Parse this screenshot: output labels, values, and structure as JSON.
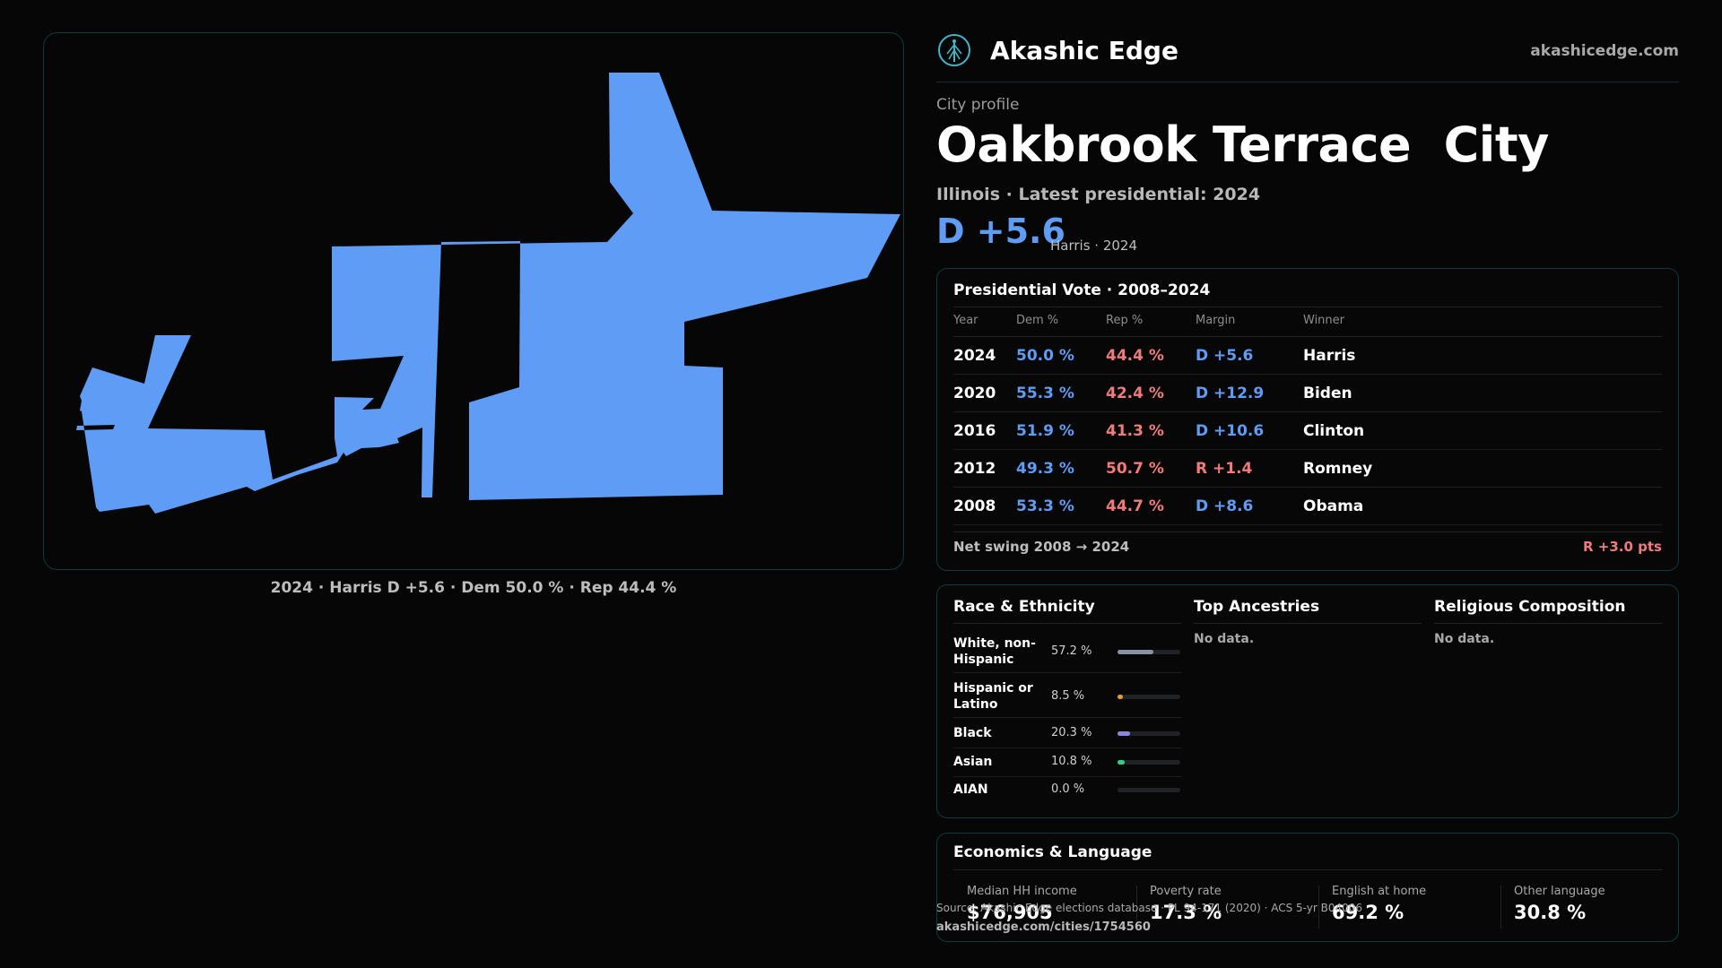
{
  "brand": {
    "name": "Akashic Edge",
    "site": "akashicedge.com",
    "logo_icon": "akashic-tree-icon"
  },
  "map": {
    "caption": "2024 · Harris D +5.6 · Dem 50.0 % · Rep 44.4 %",
    "fill_color": "#5f9cf5"
  },
  "profile": {
    "eyebrow": "City profile",
    "title": "Oakbrook Terrace  City",
    "subtitle": "Illinois · Latest presidential: 2024",
    "margin": "D +5.6",
    "margin_note": "Harris · 2024"
  },
  "vote": {
    "title": "Presidential Vote · 2008–2024",
    "headers": {
      "year": "Year",
      "dem": "Dem %",
      "rep": "Rep %",
      "margin": "Margin",
      "winner": "Winner"
    },
    "rows": [
      {
        "year": "2024",
        "dem": "50.0 %",
        "rep": "44.4 %",
        "margin": "D +5.6",
        "party": "D",
        "winner": "Harris"
      },
      {
        "year": "2020",
        "dem": "55.3 %",
        "rep": "42.4 %",
        "margin": "D +12.9",
        "party": "D",
        "winner": "Biden"
      },
      {
        "year": "2016",
        "dem": "51.9 %",
        "rep": "41.3 %",
        "margin": "D +10.6",
        "party": "D",
        "winner": "Clinton"
      },
      {
        "year": "2012",
        "dem": "49.3 %",
        "rep": "50.7 %",
        "margin": "R +1.4",
        "party": "R",
        "winner": "Romney"
      },
      {
        "year": "2008",
        "dem": "53.3 %",
        "rep": "44.7 %",
        "margin": "D +8.6",
        "party": "D",
        "winner": "Obama"
      }
    ],
    "swing_label": "Net swing 2008 → 2024",
    "swing_value": "R +3.0 pts"
  },
  "demographics": {
    "race_title": "Race & Ethnicity",
    "race": [
      {
        "label": "White, non-Hispanic",
        "pct": "57.2 %",
        "value": 57.2,
        "color": "#8a93a6"
      },
      {
        "label": "Hispanic or Latino",
        "pct": "8.5 %",
        "value": 8.5,
        "color": "#e0a030"
      },
      {
        "label": "Black",
        "pct": "20.3 %",
        "value": 20.3,
        "color": "#8c86e0"
      },
      {
        "label": "Asian",
        "pct": "10.8 %",
        "value": 10.8,
        "color": "#2fcf8a"
      },
      {
        "label": "AIAN",
        "pct": "0.0 %",
        "value": 0.0,
        "color": "#888888"
      }
    ],
    "ancestry_title": "Top Ancestries",
    "ancestry_empty": "No data.",
    "religion_title": "Religious Composition",
    "religion_empty": "No data."
  },
  "economics": {
    "title": "Economics & Language",
    "items": [
      {
        "label": "Median HH income",
        "value": "$76,905"
      },
      {
        "label": "Poverty rate",
        "value": "17.3 %"
      },
      {
        "label": "English at home",
        "value": "69.2 %"
      },
      {
        "label": "Other language",
        "value": "30.8 %"
      }
    ]
  },
  "footer": {
    "source": "Source: Akashic Edge elections database · PL 94-171 (2020) · ACS 5-yr B04006",
    "url": "akashicedge.com/cities/1754560"
  }
}
